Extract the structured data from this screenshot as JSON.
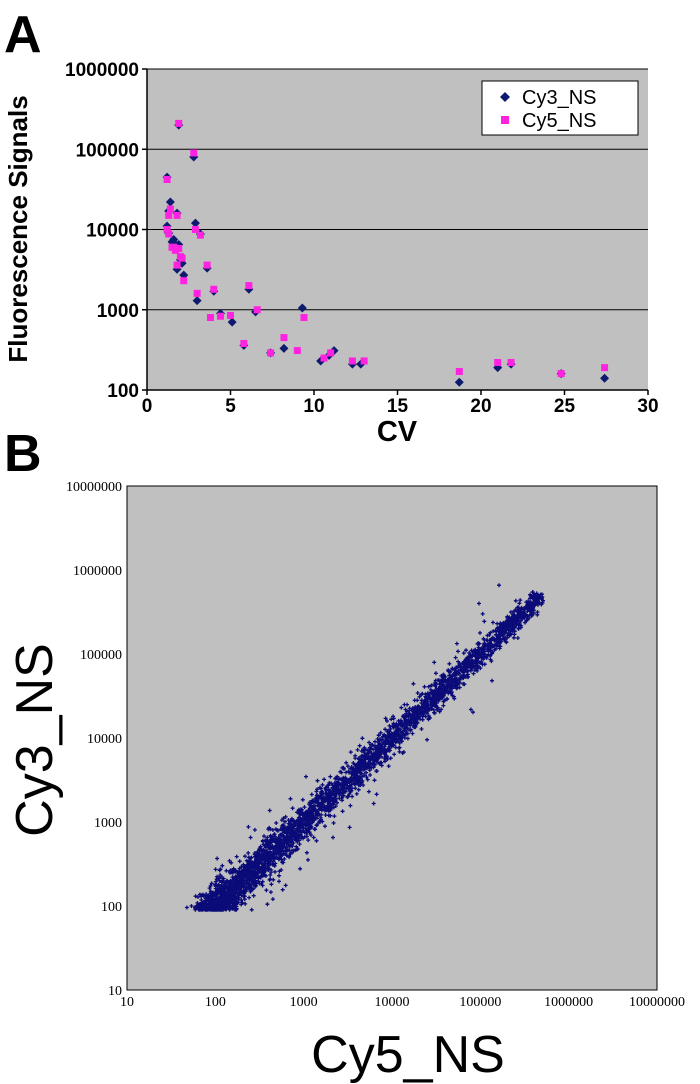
{
  "panels": {
    "a_label": "A",
    "b_label": "B"
  },
  "colors": {
    "cy3": "#0d1a6e",
    "cy5": "#ff22e0",
    "scatter": "#0a0a78",
    "plot_bg": "#c0c0c0"
  },
  "chart_data": [
    {
      "type": "scatter",
      "panel": "A",
      "title": "",
      "xlabel": "CV",
      "ylabel": "Fluorescence Signals",
      "xlim": [
        0,
        30
      ],
      "ylim": [
        100,
        1000000
      ],
      "yscale": "log",
      "x_ticks": [
        "0",
        "5",
        "10",
        "15",
        "20",
        "25",
        "30"
      ],
      "y_ticks": [
        "100",
        "1000",
        "10000",
        "100000",
        "1000000"
      ],
      "legend_position": "top-right",
      "grid": "horizontal",
      "series": [
        {
          "name": "Cy3_NS",
          "marker": "diamond",
          "points": [
            [
              1.2,
              45000
            ],
            [
              1.3,
              17000
            ],
            [
              1.4,
              22000
            ],
            [
              1.2,
              11000
            ],
            [
              1.3,
              9000
            ],
            [
              1.5,
              7000
            ],
            [
              1.6,
              7500
            ],
            [
              1.7,
              6500
            ],
            [
              1.8,
              3200
            ],
            [
              1.9,
              6500
            ],
            [
              2.0,
              4200
            ],
            [
              2.1,
              3800
            ],
            [
              2.2,
              2700
            ],
            [
              1.8,
              16000
            ],
            [
              1.9,
              200000
            ],
            [
              2.8,
              80000
            ],
            [
              2.9,
              12000
            ],
            [
              3.0,
              1300
            ],
            [
              3.2,
              8800
            ],
            [
              3.6,
              3300
            ],
            [
              4.0,
              1700
            ],
            [
              4.4,
              900
            ],
            [
              5.1,
              700
            ],
            [
              5.8,
              360
            ],
            [
              6.1,
              1800
            ],
            [
              6.5,
              940
            ],
            [
              7.4,
              290
            ],
            [
              8.2,
              330
            ],
            [
              9.3,
              1050
            ],
            [
              10.4,
              230
            ],
            [
              10.9,
              270
            ],
            [
              11.2,
              310
            ],
            [
              12.3,
              210
            ],
            [
              12.8,
              210
            ],
            [
              18.7,
              125
            ],
            [
              21.0,
              190
            ],
            [
              21.8,
              210
            ],
            [
              24.8,
              160
            ],
            [
              27.4,
              140
            ]
          ]
        },
        {
          "name": "Cy5_NS",
          "marker": "square",
          "points": [
            [
              1.2,
              42000
            ],
            [
              1.3,
              15000
            ],
            [
              1.4,
              18000
            ],
            [
              1.2,
              10000
            ],
            [
              1.3,
              8800
            ],
            [
              1.5,
              6000
            ],
            [
              1.6,
              6000
            ],
            [
              1.7,
              5500
            ],
            [
              1.8,
              3600
            ],
            [
              1.9,
              5800
            ],
            [
              2.0,
              4600
            ],
            [
              2.1,
              4400
            ],
            [
              2.2,
              2300
            ],
            [
              1.8,
              15000
            ],
            [
              1.9,
              210000
            ],
            [
              2.8,
              90000
            ],
            [
              2.9,
              10000
            ],
            [
              3.0,
              1600
            ],
            [
              3.2,
              8500
            ],
            [
              3.6,
              3600
            ],
            [
              4.0,
              1800
            ],
            [
              3.8,
              800
            ],
            [
              4.4,
              830
            ],
            [
              5.0,
              850
            ],
            [
              5.8,
              380
            ],
            [
              6.1,
              2000
            ],
            [
              6.6,
              1000
            ],
            [
              7.4,
              290
            ],
            [
              8.2,
              450
            ],
            [
              9.0,
              310
            ],
            [
              9.4,
              800
            ],
            [
              10.6,
              250
            ],
            [
              11.0,
              290
            ],
            [
              12.3,
              230
            ],
            [
              13.0,
              230
            ],
            [
              18.7,
              170
            ],
            [
              21.0,
              220
            ],
            [
              21.8,
              220
            ],
            [
              24.8,
              160
            ],
            [
              27.4,
              190
            ]
          ]
        }
      ]
    },
    {
      "type": "scatter",
      "panel": "B",
      "title": "",
      "xlabel": "Cy5_NS",
      "ylabel": "Cy3_NS",
      "xscale": "log",
      "yscale": "log",
      "xlim": [
        10,
        10000000
      ],
      "ylim": [
        10,
        10000000
      ],
      "x_ticks": [
        "10",
        "100",
        "1000",
        "10000",
        "100000",
        "1000000",
        "10000000"
      ],
      "y_ticks": [
        "10",
        "100",
        "1000",
        "10000",
        "100000",
        "1000000",
        "10000000"
      ],
      "grid": "none",
      "legend_position": "none",
      "series": [
        {
          "name": "Cy3_NS vs Cy5_NS",
          "marker": "plus",
          "distribution": {
            "x_range": [
              80,
              480000
            ],
            "trend": "y ≈ x",
            "min_y": 90,
            "max_point": [
              480000,
              480000
            ]
          }
        }
      ]
    }
  ]
}
